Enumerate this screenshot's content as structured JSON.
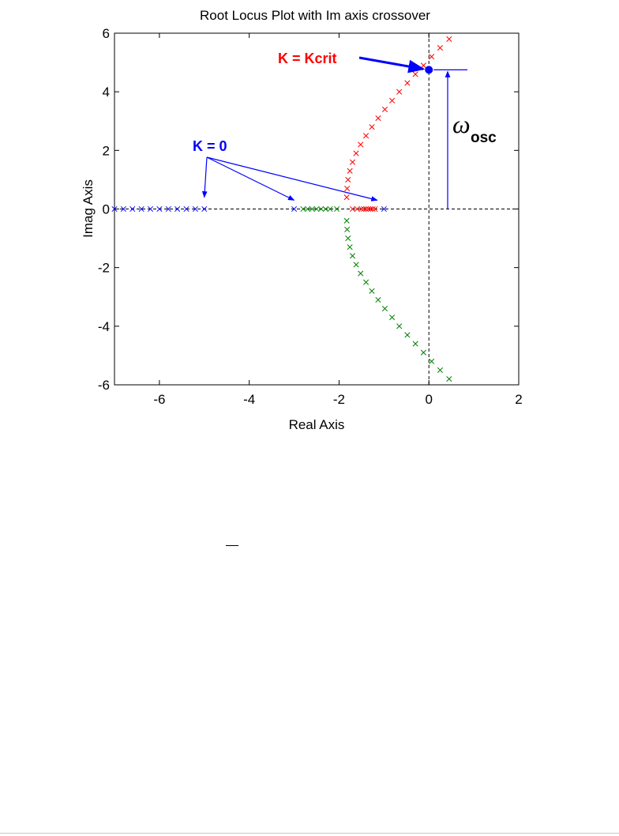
{
  "chart_data": {
    "type": "scatter",
    "title": "Root Locus Plot with Im axis crossover",
    "xlabel": "Real Axis",
    "ylabel": "Imag Axis",
    "xlim": [
      -7,
      2
    ],
    "ylim": [
      -6,
      6
    ],
    "xticks": [
      -6,
      -4,
      -2,
      0,
      2
    ],
    "yticks": [
      6,
      4,
      2,
      0,
      -2,
      -4,
      -6
    ],
    "grid": false,
    "marker": "x",
    "series": [
      {
        "color": "#ff0000",
        "points": [
          [
            -1.2,
            0
          ],
          [
            -1.25,
            0
          ],
          [
            -1.3,
            0
          ],
          [
            -1.35,
            0
          ],
          [
            -1.4,
            0
          ],
          [
            -1.45,
            0
          ],
          [
            -1.5,
            0
          ],
          [
            -1.6,
            0
          ],
          [
            -1.7,
            0
          ],
          [
            -1.83,
            0.4
          ],
          [
            -1.82,
            0.7
          ],
          [
            -1.8,
            1.0
          ],
          [
            -1.76,
            1.3
          ],
          [
            -1.7,
            1.6
          ],
          [
            -1.62,
            1.9
          ],
          [
            -1.52,
            2.2
          ],
          [
            -1.4,
            2.5
          ],
          [
            -1.27,
            2.8
          ],
          [
            -1.13,
            3.1
          ],
          [
            -0.98,
            3.4
          ],
          [
            -0.82,
            3.7
          ],
          [
            -0.66,
            4.0
          ],
          [
            -0.48,
            4.3
          ],
          [
            -0.3,
            4.6
          ],
          [
            -0.12,
            4.9
          ],
          [
            0.06,
            5.2
          ],
          [
            0.25,
            5.5
          ],
          [
            0.45,
            5.8
          ]
        ]
      },
      {
        "color": "#008000",
        "points": [
          [
            -2.8,
            0
          ],
          [
            -2.7,
            0
          ],
          [
            -2.6,
            0
          ],
          [
            -2.5,
            0
          ],
          [
            -2.4,
            0
          ],
          [
            -2.3,
            0
          ],
          [
            -2.2,
            0
          ],
          [
            -2.05,
            0
          ],
          [
            -1.83,
            -0.4
          ],
          [
            -1.82,
            -0.7
          ],
          [
            -1.8,
            -1.0
          ],
          [
            -1.76,
            -1.3
          ],
          [
            -1.7,
            -1.6
          ],
          [
            -1.62,
            -1.9
          ],
          [
            -1.52,
            -2.2
          ],
          [
            -1.4,
            -2.5
          ],
          [
            -1.27,
            -2.8
          ],
          [
            -1.13,
            -3.1
          ],
          [
            -0.98,
            -3.4
          ],
          [
            -0.82,
            -3.7
          ],
          [
            -0.66,
            -4.0
          ],
          [
            -0.48,
            -4.3
          ],
          [
            -0.3,
            -4.6
          ],
          [
            -0.12,
            -4.9
          ],
          [
            0.06,
            -5.2
          ],
          [
            0.25,
            -5.5
          ],
          [
            0.45,
            -5.8
          ]
        ]
      },
      {
        "color": "#0000ff",
        "points": [
          [
            -7.0,
            0
          ],
          [
            -6.8,
            0
          ],
          [
            -6.6,
            0
          ],
          [
            -6.4,
            0
          ],
          [
            -6.2,
            0
          ],
          [
            -6.0,
            0
          ],
          [
            -5.8,
            0
          ],
          [
            -5.6,
            0
          ],
          [
            -5.4,
            0
          ],
          [
            -5.2,
            0
          ],
          [
            -5.0,
            0
          ],
          [
            -3.0,
            0
          ],
          [
            -1.0,
            0
          ]
        ]
      }
    ],
    "crossover_point": {
      "x": 0,
      "y": 4.75,
      "color": "#0000ff"
    },
    "annotations": {
      "kcrit_label": "K = Kcrit",
      "kcrit_color": "#ff0000",
      "k0_label": "K = 0",
      "k0_color": "#0000ff",
      "k0_targets": [
        [
          -5,
          0.4
        ],
        [
          -3,
          0.3
        ],
        [
          -1.15,
          0.3
        ]
      ],
      "omega_symbol": "ω",
      "omega_subscript": "osc",
      "omega_value": 4.75
    }
  }
}
